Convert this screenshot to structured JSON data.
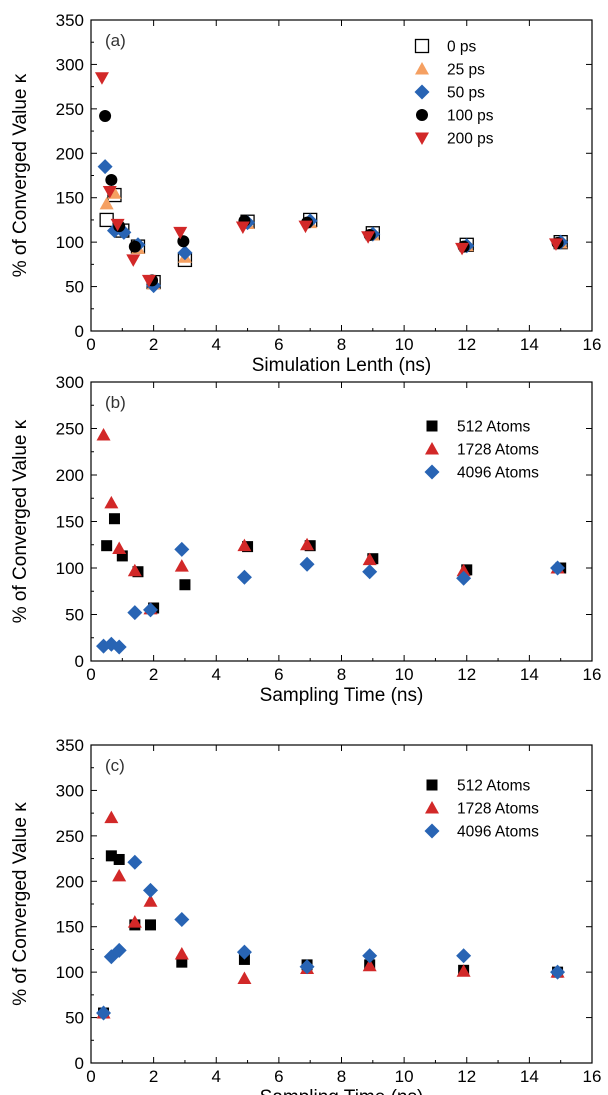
{
  "chart_data": [
    {
      "type": "scatter",
      "panel_label": "(a)",
      "xlabel": "Simulation Lenth (ns)",
      "ylabel": "% of Converged Value κ",
      "xlim": [
        0,
        16
      ],
      "ylim": [
        0,
        350
      ],
      "xticks": [
        0,
        2,
        4,
        6,
        8,
        10,
        12,
        14,
        16
      ],
      "yticks": [
        0,
        50,
        100,
        150,
        200,
        250,
        300,
        350
      ],
      "legend_position": "top-right",
      "series": [
        {
          "name": "0 ps",
          "marker": "square-open",
          "color": "#000000",
          "x": [
            0.5,
            0.75,
            1.0,
            1.5,
            2.0,
            3.0,
            5.0,
            7.0,
            9.0,
            12.0,
            15.0
          ],
          "y": [
            125,
            153,
            113,
            95,
            55,
            80,
            123,
            125,
            110,
            97,
            100
          ]
        },
        {
          "name": "25 ps",
          "marker": "triangle-up",
          "color": "#f5a062",
          "x": [
            0.5,
            0.75,
            1.0,
            1.5,
            2.0,
            3.0,
            5.0,
            7.0,
            9.0,
            12.0,
            15.0
          ],
          "y": [
            143,
            155,
            115,
            93,
            53,
            83,
            121,
            122,
            108,
            96,
            99
          ]
        },
        {
          "name": "50 ps",
          "marker": "diamond",
          "color": "#2864b4",
          "x": [
            0.45,
            0.75,
            1.05,
            1.5,
            2.0,
            3.0,
            5.0,
            7.0,
            9.0,
            12.0,
            15.0
          ],
          "y": [
            185,
            113,
            111,
            97,
            51,
            88,
            122,
            124,
            109,
            96,
            100
          ]
        },
        {
          "name": "100 ps",
          "marker": "circle",
          "color": "#000000",
          "x": [
            0.45,
            0.65,
            0.9,
            1.4,
            1.95,
            2.95,
            4.9,
            6.9,
            8.9,
            11.9,
            14.9
          ],
          "y": [
            242,
            170,
            118,
            95,
            57,
            101,
            124,
            122,
            108,
            95,
            99
          ]
        },
        {
          "name": "200 ps",
          "marker": "triangle-down",
          "color": "#d22828",
          "x": [
            0.35,
            0.6,
            0.85,
            1.35,
            1.85,
            2.85,
            4.85,
            6.85,
            8.85,
            11.85,
            14.85
          ],
          "y": [
            285,
            157,
            120,
            80,
            57,
            111,
            117,
            118,
            106,
            93,
            98
          ]
        }
      ]
    },
    {
      "type": "scatter",
      "panel_label": "(b)",
      "xlabel": "Sampling Time (ns)",
      "ylabel": "% of Converged Value κ",
      "xlim": [
        0,
        16
      ],
      "ylim": [
        0,
        300
      ],
      "xticks": [
        0,
        2,
        4,
        6,
        8,
        10,
        12,
        14,
        16
      ],
      "yticks": [
        0,
        50,
        100,
        150,
        200,
        250,
        300
      ],
      "legend_position": "top-right",
      "series": [
        {
          "name": "512 Atoms",
          "marker": "square",
          "color": "#000000",
          "x": [
            0.5,
            0.75,
            1.0,
            1.5,
            2.0,
            3.0,
            5.0,
            7.0,
            9.0,
            12.0,
            15.0
          ],
          "y": [
            124,
            153,
            113,
            96,
            57,
            82,
            123,
            124,
            110,
            98,
            100
          ]
        },
        {
          "name": "1728 Atoms",
          "marker": "triangle-up",
          "color": "#d22828",
          "x": [
            0.4,
            0.65,
            0.9,
            1.4,
            1.9,
            2.9,
            4.9,
            6.9,
            8.9,
            11.9,
            14.9
          ],
          "y": [
            243,
            170,
            121,
            97,
            56,
            102,
            124,
            125,
            109,
            97,
            100
          ]
        },
        {
          "name": "4096 Atoms",
          "marker": "diamond",
          "color": "#2864b4",
          "x": [
            0.4,
            0.65,
            0.9,
            1.4,
            1.9,
            2.9,
            4.9,
            6.9,
            8.9,
            11.9,
            14.9
          ],
          "y": [
            16,
            18,
            15,
            52,
            55,
            120,
            90,
            104,
            96,
            89,
            100
          ]
        }
      ]
    },
    {
      "type": "scatter",
      "panel_label": "(c)",
      "xlabel": "Sampling Time (ns)",
      "ylabel": "% of Converged Value κ",
      "xlim": [
        0,
        16
      ],
      "ylim": [
        0,
        350
      ],
      "xticks": [
        0,
        2,
        4,
        6,
        8,
        10,
        12,
        14,
        16
      ],
      "yticks": [
        0,
        50,
        100,
        150,
        200,
        250,
        300,
        350
      ],
      "legend_position": "top-right",
      "series": [
        {
          "name": "512 Atoms",
          "marker": "square",
          "color": "#000000",
          "x": [
            0.4,
            0.65,
            0.9,
            1.4,
            1.9,
            2.9,
            4.9,
            6.9,
            8.9,
            11.9,
            14.9
          ],
          "y": [
            55,
            228,
            224,
            152,
            152,
            111,
            114,
            108,
            108,
            102,
            100
          ]
        },
        {
          "name": "1728 Atoms",
          "marker": "triangle-up",
          "color": "#d22828",
          "x": [
            0.4,
            0.65,
            0.9,
            1.4,
            1.9,
            2.9,
            4.9,
            6.9,
            8.9,
            11.9,
            14.9
          ],
          "y": [
            55,
            270,
            206,
            155,
            178,
            120,
            93,
            104,
            107,
            101,
            100
          ]
        },
        {
          "name": "4096 Atoms",
          "marker": "diamond",
          "color": "#2864b4",
          "x": [
            0.4,
            0.65,
            0.9,
            1.4,
            1.9,
            2.9,
            4.9,
            6.9,
            8.9,
            11.9,
            14.9
          ],
          "y": [
            55,
            117,
            124,
            221,
            190,
            158,
            122,
            106,
            118,
            118,
            100
          ]
        }
      ]
    }
  ]
}
